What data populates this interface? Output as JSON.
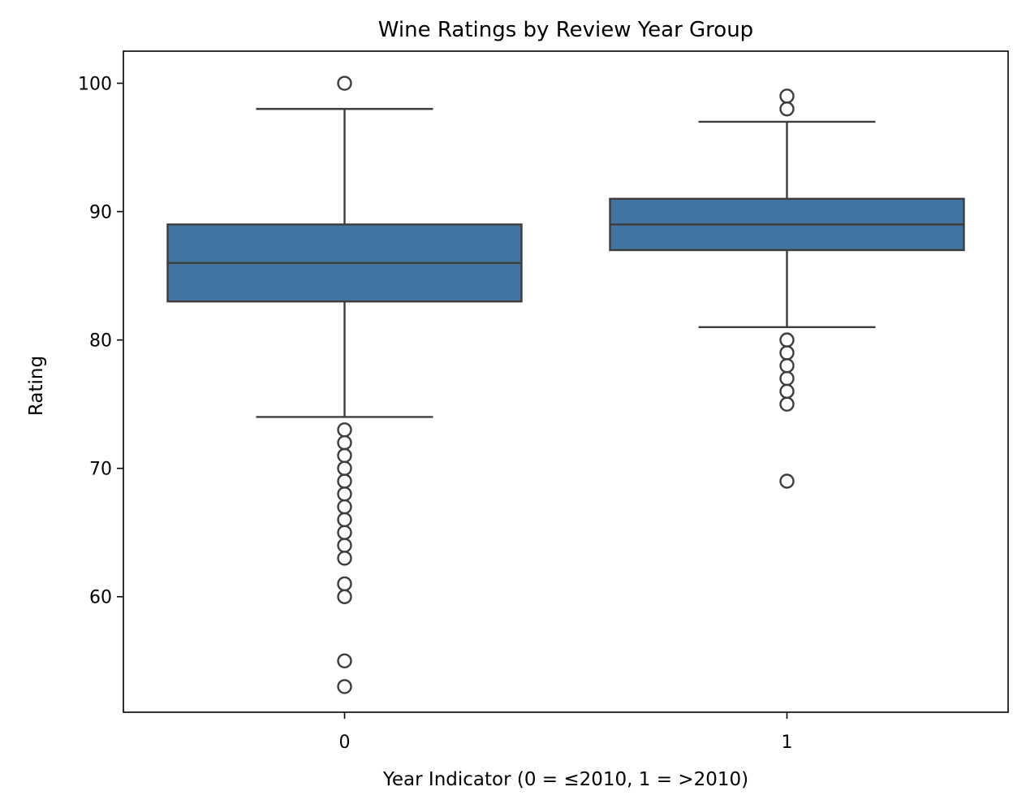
{
  "chart_data": {
    "type": "box",
    "title": "Wine Ratings by Review Year Group",
    "xlabel": "Year Indicator (0 = ≤2010, 1 = >2010)",
    "ylabel": "Rating",
    "ylim": [
      51,
      102.5
    ],
    "yticks": [
      60,
      70,
      80,
      90,
      100
    ],
    "categories": [
      "0",
      "1"
    ],
    "box_color": "#4174a0",
    "line_color": "#3d3d3d",
    "boxes": [
      {
        "category": "0",
        "q1": 83,
        "median": 86,
        "q3": 89,
        "whisker_low": 74,
        "whisker_high": 98,
        "outliers": [
          100,
          73,
          72,
          71,
          70,
          69,
          68,
          67,
          66,
          65,
          64,
          63,
          61,
          60,
          55,
          53
        ]
      },
      {
        "category": "1",
        "q1": 87,
        "median": 89,
        "q3": 91,
        "whisker_low": 81,
        "whisker_high": 97,
        "outliers": [
          99,
          98,
          80,
          79,
          78,
          77,
          76,
          75,
          69
        ]
      }
    ]
  }
}
